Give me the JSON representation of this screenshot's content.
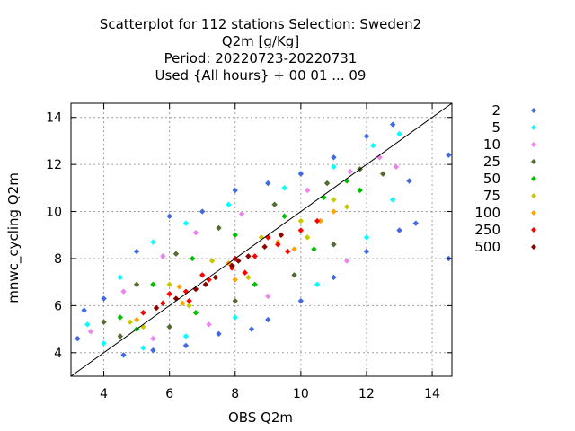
{
  "chart_data": {
    "type": "scatter",
    "title_lines": [
      "Scatterplot for  112 stations Selection: Sweden2",
      "Q2m [g/Kg]",
      "Period: 20220723-20220731",
      "Used {All hours} + 00 01 ... 09"
    ],
    "xlabel": "OBS Q2m",
    "ylabel": "mnwc_cycling Q2m",
    "xlim": [
      3.0,
      14.6
    ],
    "ylim": [
      3.0,
      14.6
    ],
    "xticks": [
      4,
      6,
      8,
      10,
      12,
      14
    ],
    "yticks": [
      4,
      6,
      8,
      10,
      12,
      14
    ],
    "grid": true,
    "diagonal_line": [
      [
        3.0,
        3.0
      ],
      [
        14.6,
        14.6
      ]
    ],
    "legend_position": "right",
    "density_bins": [
      {
        "label": "2",
        "color": "#4169e1"
      },
      {
        "label": "5",
        "color": "#00ffff"
      },
      {
        "label": "10",
        "color": "#ee82ee"
      },
      {
        "label": "25",
        "color": "#556b2f"
      },
      {
        "label": "50",
        "color": "#00c000"
      },
      {
        "label": "75",
        "color": "#c8c800"
      },
      {
        "label": "100",
        "color": "#ffa500"
      },
      {
        "label": "250",
        "color": "#ff0000"
      },
      {
        "label": "500",
        "color": "#8b0000"
      }
    ],
    "points": [
      {
        "x": 3.2,
        "y": 4.6,
        "bin": 0
      },
      {
        "x": 3.4,
        "y": 5.8,
        "bin": 0
      },
      {
        "x": 4.0,
        "y": 6.3,
        "bin": 0
      },
      {
        "x": 4.6,
        "y": 3.9,
        "bin": 0
      },
      {
        "x": 5.5,
        "y": 4.1,
        "bin": 0
      },
      {
        "x": 6.5,
        "y": 4.3,
        "bin": 0
      },
      {
        "x": 7.5,
        "y": 4.8,
        "bin": 0
      },
      {
        "x": 5.0,
        "y": 8.3,
        "bin": 0
      },
      {
        "x": 6.0,
        "y": 9.8,
        "bin": 0
      },
      {
        "x": 7.0,
        "y": 10.0,
        "bin": 0
      },
      {
        "x": 8.0,
        "y": 10.9,
        "bin": 0
      },
      {
        "x": 9.0,
        "y": 11.2,
        "bin": 0
      },
      {
        "x": 10.0,
        "y": 11.6,
        "bin": 0
      },
      {
        "x": 11.0,
        "y": 12.3,
        "bin": 0
      },
      {
        "x": 12.0,
        "y": 13.2,
        "bin": 0
      },
      {
        "x": 12.8,
        "y": 13.7,
        "bin": 0
      },
      {
        "x": 13.3,
        "y": 11.3,
        "bin": 0
      },
      {
        "x": 13.5,
        "y": 9.5,
        "bin": 0
      },
      {
        "x": 14.5,
        "y": 12.4,
        "bin": 0
      },
      {
        "x": 14.5,
        "y": 8.0,
        "bin": 0
      },
      {
        "x": 9.0,
        "y": 5.4,
        "bin": 0
      },
      {
        "x": 10.0,
        "y": 6.2,
        "bin": 0
      },
      {
        "x": 11.0,
        "y": 7.2,
        "bin": 0
      },
      {
        "x": 12.0,
        "y": 8.3,
        "bin": 0
      },
      {
        "x": 13.0,
        "y": 9.2,
        "bin": 0
      },
      {
        "x": 8.5,
        "y": 5.0,
        "bin": 0
      },
      {
        "x": 3.5,
        "y": 5.2,
        "bin": 1
      },
      {
        "x": 4.0,
        "y": 4.4,
        "bin": 1
      },
      {
        "x": 4.5,
        "y": 7.2,
        "bin": 1
      },
      {
        "x": 5.5,
        "y": 8.7,
        "bin": 1
      },
      {
        "x": 6.5,
        "y": 9.5,
        "bin": 1
      },
      {
        "x": 7.8,
        "y": 10.3,
        "bin": 1
      },
      {
        "x": 9.5,
        "y": 11.0,
        "bin": 1
      },
      {
        "x": 11.0,
        "y": 11.9,
        "bin": 1
      },
      {
        "x": 12.2,
        "y": 12.8,
        "bin": 1
      },
      {
        "x": 13.0,
        "y": 13.3,
        "bin": 1
      },
      {
        "x": 12.8,
        "y": 10.5,
        "bin": 1
      },
      {
        "x": 8.0,
        "y": 5.5,
        "bin": 1
      },
      {
        "x": 10.5,
        "y": 6.9,
        "bin": 1
      },
      {
        "x": 6.5,
        "y": 4.7,
        "bin": 1
      },
      {
        "x": 5.2,
        "y": 4.2,
        "bin": 1
      },
      {
        "x": 12.0,
        "y": 8.9,
        "bin": 1
      },
      {
        "x": 3.6,
        "y": 4.9,
        "bin": 2
      },
      {
        "x": 4.6,
        "y": 6.6,
        "bin": 2
      },
      {
        "x": 5.8,
        "y": 8.1,
        "bin": 2
      },
      {
        "x": 6.8,
        "y": 9.1,
        "bin": 2
      },
      {
        "x": 8.2,
        "y": 9.9,
        "bin": 2
      },
      {
        "x": 10.2,
        "y": 10.9,
        "bin": 2
      },
      {
        "x": 11.5,
        "y": 11.7,
        "bin": 2
      },
      {
        "x": 12.4,
        "y": 12.3,
        "bin": 2
      },
      {
        "x": 12.9,
        "y": 11.9,
        "bin": 2
      },
      {
        "x": 9.0,
        "y": 6.4,
        "bin": 2
      },
      {
        "x": 7.2,
        "y": 5.2,
        "bin": 2
      },
      {
        "x": 11.4,
        "y": 7.9,
        "bin": 2
      },
      {
        "x": 5.5,
        "y": 4.6,
        "bin": 2
      },
      {
        "x": 4.0,
        "y": 5.3,
        "bin": 3
      },
      {
        "x": 5.0,
        "y": 6.9,
        "bin": 3
      },
      {
        "x": 6.2,
        "y": 8.2,
        "bin": 3
      },
      {
        "x": 7.5,
        "y": 9.3,
        "bin": 3
      },
      {
        "x": 9.2,
        "y": 10.3,
        "bin": 3
      },
      {
        "x": 10.8,
        "y": 11.2,
        "bin": 3
      },
      {
        "x": 11.8,
        "y": 11.8,
        "bin": 3
      },
      {
        "x": 12.5,
        "y": 11.6,
        "bin": 3
      },
      {
        "x": 8.0,
        "y": 6.2,
        "bin": 3
      },
      {
        "x": 9.8,
        "y": 7.3,
        "bin": 3
      },
      {
        "x": 11.0,
        "y": 8.6,
        "bin": 3
      },
      {
        "x": 6.0,
        "y": 5.1,
        "bin": 3
      },
      {
        "x": 4.5,
        "y": 4.7,
        "bin": 3
      },
      {
        "x": 4.5,
        "y": 5.5,
        "bin": 4
      },
      {
        "x": 5.5,
        "y": 6.9,
        "bin": 4
      },
      {
        "x": 6.7,
        "y": 8.0,
        "bin": 4
      },
      {
        "x": 8.0,
        "y": 9.0,
        "bin": 4
      },
      {
        "x": 9.5,
        "y": 9.8,
        "bin": 4
      },
      {
        "x": 10.7,
        "y": 10.6,
        "bin": 4
      },
      {
        "x": 11.4,
        "y": 11.3,
        "bin": 4
      },
      {
        "x": 11.8,
        "y": 10.9,
        "bin": 4
      },
      {
        "x": 10.4,
        "y": 8.4,
        "bin": 4
      },
      {
        "x": 8.6,
        "y": 6.9,
        "bin": 4
      },
      {
        "x": 6.8,
        "y": 5.7,
        "bin": 4
      },
      {
        "x": 5.0,
        "y": 5.0,
        "bin": 4
      },
      {
        "x": 4.8,
        "y": 5.3,
        "bin": 5
      },
      {
        "x": 6.0,
        "y": 6.9,
        "bin": 5
      },
      {
        "x": 7.3,
        "y": 7.9,
        "bin": 5
      },
      {
        "x": 8.8,
        "y": 8.9,
        "bin": 5
      },
      {
        "x": 10.0,
        "y": 9.6,
        "bin": 5
      },
      {
        "x": 11.0,
        "y": 10.5,
        "bin": 5
      },
      {
        "x": 11.4,
        "y": 10.2,
        "bin": 5
      },
      {
        "x": 10.2,
        "y": 8.9,
        "bin": 5
      },
      {
        "x": 8.4,
        "y": 7.2,
        "bin": 5
      },
      {
        "x": 6.6,
        "y": 6.0,
        "bin": 5
      },
      {
        "x": 5.2,
        "y": 5.1,
        "bin": 5
      },
      {
        "x": 5.0,
        "y": 5.4,
        "bin": 6
      },
      {
        "x": 6.3,
        "y": 6.8,
        "bin": 6
      },
      {
        "x": 7.8,
        "y": 7.8,
        "bin": 6
      },
      {
        "x": 9.3,
        "y": 8.7,
        "bin": 6
      },
      {
        "x": 10.6,
        "y": 9.6,
        "bin": 6
      },
      {
        "x": 11.0,
        "y": 10.0,
        "bin": 6
      },
      {
        "x": 9.8,
        "y": 8.4,
        "bin": 6
      },
      {
        "x": 8.0,
        "y": 7.1,
        "bin": 6
      },
      {
        "x": 6.4,
        "y": 6.1,
        "bin": 6
      },
      {
        "x": 5.2,
        "y": 5.7,
        "bin": 7
      },
      {
        "x": 5.8,
        "y": 6.1,
        "bin": 7
      },
      {
        "x": 6.5,
        "y": 6.6,
        "bin": 7
      },
      {
        "x": 7.2,
        "y": 7.1,
        "bin": 7
      },
      {
        "x": 7.9,
        "y": 7.6,
        "bin": 7
      },
      {
        "x": 8.6,
        "y": 8.1,
        "bin": 7
      },
      {
        "x": 9.3,
        "y": 8.6,
        "bin": 7
      },
      {
        "x": 10.0,
        "y": 9.2,
        "bin": 7
      },
      {
        "x": 10.5,
        "y": 9.6,
        "bin": 7
      },
      {
        "x": 6.0,
        "y": 6.5,
        "bin": 7
      },
      {
        "x": 7.0,
        "y": 7.3,
        "bin": 7
      },
      {
        "x": 8.0,
        "y": 8.0,
        "bin": 7
      },
      {
        "x": 9.0,
        "y": 8.9,
        "bin": 7
      },
      {
        "x": 6.6,
        "y": 6.2,
        "bin": 7
      },
      {
        "x": 8.3,
        "y": 7.4,
        "bin": 7
      },
      {
        "x": 9.6,
        "y": 8.3,
        "bin": 7
      },
      {
        "x": 5.6,
        "y": 5.9,
        "bin": 8
      },
      {
        "x": 6.2,
        "y": 6.3,
        "bin": 8
      },
      {
        "x": 6.8,
        "y": 6.7,
        "bin": 8
      },
      {
        "x": 7.4,
        "y": 7.2,
        "bin": 8
      },
      {
        "x": 7.9,
        "y": 7.7,
        "bin": 8
      },
      {
        "x": 8.4,
        "y": 8.1,
        "bin": 8
      },
      {
        "x": 8.9,
        "y": 8.5,
        "bin": 8
      },
      {
        "x": 9.4,
        "y": 9.0,
        "bin": 8
      },
      {
        "x": 7.1,
        "y": 6.9,
        "bin": 8
      },
      {
        "x": 8.1,
        "y": 7.9,
        "bin": 8
      }
    ]
  }
}
